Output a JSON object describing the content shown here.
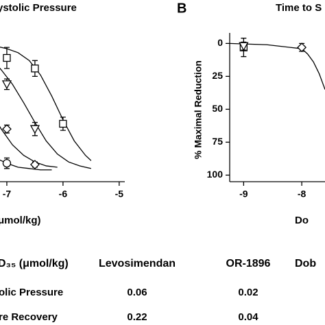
{
  "chart_data": [
    {
      "type": "dose_response",
      "title": "ystolic Pressure",
      "xlabel": "μmol/kg)",
      "xlim": [
        -7.5,
        -4.9
      ],
      "xticks": [
        -7,
        -6,
        -5
      ],
      "ylim": [
        105,
        -8
      ],
      "series": [
        {
          "marker": "square",
          "x": [
            -7,
            -6.5,
            -6
          ],
          "values": [
            11,
            19,
            61
          ],
          "errors": [
            8,
            6,
            5
          ],
          "fit_x": [
            -7.5,
            -7.2,
            -7,
            -6.8,
            -6.6,
            -6.4,
            -6.2,
            -6,
            -5.8,
            -5.6,
            -5.5
          ],
          "fit": [
            0,
            2,
            4,
            7,
            13,
            24,
            40,
            58,
            74,
            85,
            89
          ]
        },
        {
          "marker": "triangle",
          "x": [
            -7,
            -6.5
          ],
          "values": [
            31,
            65
          ],
          "errors": [
            4,
            5
          ],
          "fit_x": [
            -7.5,
            -7.3,
            -7.1,
            -6.9,
            -6.7,
            -6.5,
            -6.3,
            -6.1,
            -5.9,
            -5.7,
            -5.5
          ],
          "fit": [
            3,
            10,
            20,
            31,
            45,
            60,
            74,
            84,
            90,
            93,
            95
          ]
        },
        {
          "marker": "diamond",
          "x": [
            -7,
            -6.5
          ],
          "values": [
            65,
            92
          ],
          "errors": [
            3,
            2
          ],
          "fit_x": [
            -7.5,
            -7.3,
            -7.1,
            -6.9,
            -6.7,
            -6.5,
            -6.3,
            -6.1
          ],
          "fit": [
            36,
            50,
            65,
            77,
            85,
            90,
            93,
            94
          ]
        },
        {
          "marker": "circle",
          "x": [
            -7
          ],
          "values": [
            91
          ],
          "errors": [
            4
          ],
          "fit_x": [
            -7.5,
            -7.2,
            -7,
            -6.8,
            -6.6,
            -6.4,
            -6.2
          ],
          "fit": [
            80,
            87,
            91,
            94,
            95,
            96,
            96
          ]
        }
      ]
    },
    {
      "type": "dose_response",
      "panel": "B",
      "title": "Time to S",
      "xlabel": "Do",
      "ylabel": "% Maximal Reduction",
      "xlim": [
        -9.24,
        -7.4
      ],
      "xticks": [
        -9,
        -8
      ],
      "ylim": [
        105,
        -8
      ],
      "yticks": [
        0,
        25,
        50,
        75,
        100
      ],
      "series": [
        {
          "marker": "square",
          "x": [
            -9
          ],
          "values": [
            3
          ],
          "errors": [
            7
          ],
          "fit_x": [
            -9.24,
            -8.6,
            -8.2,
            -8,
            -7.9,
            -7.8,
            -7.7,
            -7.6
          ],
          "fit": [
            0,
            1,
            3,
            4,
            8,
            14,
            23,
            35
          ]
        },
        {
          "marker": "triangle",
          "x": [
            -9
          ],
          "values": [
            2
          ],
          "errors": [
            3
          ],
          "fit_x": [],
          "fit": []
        },
        {
          "marker": "diamond",
          "x": [
            -8
          ],
          "values": [
            3
          ],
          "errors": [
            3
          ],
          "fit_x": [],
          "fit": []
        }
      ]
    }
  ],
  "table": {
    "header": [
      "D₃₅ (μmol/kg)",
      "Levosimendan",
      "OR-1896",
      "Dob"
    ],
    "rows": [
      [
        "olic Pressure",
        "0.06",
        "0.02"
      ],
      [
        "re Recovery",
        "0.22",
        "0.04"
      ]
    ]
  }
}
